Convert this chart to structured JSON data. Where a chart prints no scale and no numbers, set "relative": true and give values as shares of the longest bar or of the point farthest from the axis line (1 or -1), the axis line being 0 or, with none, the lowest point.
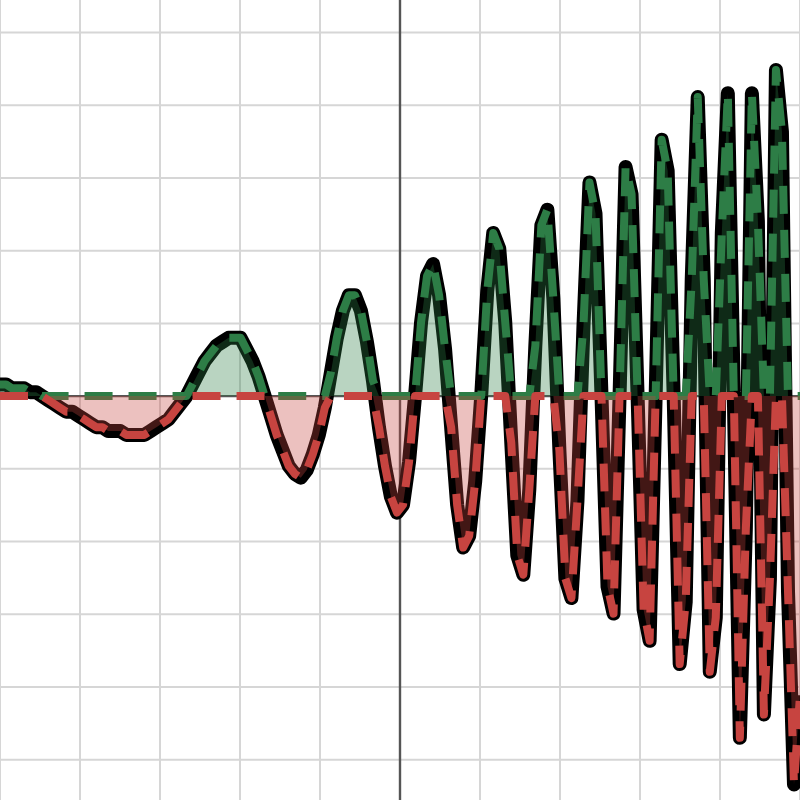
{
  "chart_data": {
    "type": "line",
    "relative": true,
    "grid": true,
    "legend": false,
    "marker": "none",
    "categories": [
      null,
      null,
      null,
      null,
      null,
      null,
      null,
      null,
      null,
      null,
      null,
      null,
      null,
      null,
      null,
      null,
      null,
      null,
      null,
      null,
      null,
      null,
      null,
      null,
      null,
      null,
      null,
      null,
      null,
      null,
      null,
      null,
      null,
      null,
      null,
      null,
      null,
      null,
      null,
      null,
      null,
      null,
      null,
      null,
      null,
      null,
      null,
      null,
      null,
      null,
      null,
      null,
      null,
      null,
      null,
      null,
      null,
      null,
      null,
      null,
      null,
      null,
      null,
      null,
      null,
      null,
      null,
      null,
      null,
      null,
      null,
      null,
      null,
      null,
      null,
      null,
      null,
      null,
      null,
      null,
      null,
      null,
      null,
      null,
      null,
      null,
      null,
      null,
      null,
      null,
      null,
      null,
      null,
      null,
      null,
      null,
      null,
      null,
      null,
      null,
      null,
      null,
      null,
      null,
      null,
      null,
      null,
      null,
      null,
      null,
      null,
      null,
      null,
      null,
      null,
      null,
      null,
      null,
      null,
      null,
      null,
      null,
      null,
      null,
      null,
      null,
      null,
      null,
      null,
      null,
      null,
      null,
      null,
      null
    ],
    "series": [
      {
        "line_style": "solid",
        "color": "#000000",
        "values": [
          0.03,
          0.03,
          0.02,
          0.02,
          0.02,
          0.01,
          0.01,
          0,
          -0.01,
          -0.02,
          -0.03,
          -0.04,
          -0.04,
          -0.05,
          -0.06,
          -0.07,
          -0.08,
          -0.08,
          -0.09,
          -0.09,
          -0.09,
          -0.1,
          -0.1,
          -0.1,
          -0.1,
          -0.09,
          -0.08,
          -0.07,
          -0.06,
          -0.04,
          -0.02,
          0,
          0.03,
          0.06,
          0.09,
          0.11,
          0.13,
          0.14,
          0.15,
          0.15,
          0.15,
          0.12,
          0.09,
          0.05,
          0,
          -0.05,
          -0.1,
          -0.14,
          -0.18,
          -0.2,
          -0.21,
          -0.19,
          -0.15,
          -0.1,
          -0.03,
          0.06,
          0.15,
          0.22,
          0.26,
          0.26,
          0.22,
          0.14,
          0.04,
          -0.08,
          -0.18,
          -0.26,
          -0.3,
          -0.28,
          -0.17,
          0,
          0.19,
          0.31,
          0.34,
          0.26,
          0.12,
          -0.08,
          -0.28,
          -0.39,
          -0.36,
          -0.22,
          0,
          0.27,
          0.42,
          0.38,
          0.19,
          -0.12,
          -0.41,
          -0.46,
          -0.24,
          0.13,
          0.44,
          0.48,
          0.25,
          -0.14,
          -0.47,
          -0.52,
          -0.27,
          0.18,
          0.55,
          0.47,
          0,
          -0.49,
          -0.56,
          0,
          0.59,
          0.52,
          0,
          -0.55,
          -0.63,
          0,
          0.66,
          0.58,
          0,
          -0.69,
          -0.53,
          0.3,
          0.77,
          0.3,
          -0.71,
          -0.57,
          0.42,
          0.78,
          0,
          -0.88,
          -0.34,
          0.78,
          0.45,
          -0.82,
          -0.47,
          0.84,
          0.68,
          -0.5,
          -1,
          -0.77
        ]
      },
      {
        "type": "area",
        "line_style": "dashed",
        "color": "#2d7d46",
        "values": [
          0.03,
          0.03,
          0.02,
          0.02,
          0.02,
          0.01,
          0.01,
          0,
          0,
          0,
          0,
          0,
          0,
          0,
          0,
          0,
          0,
          0,
          0,
          0,
          0,
          0,
          0,
          0,
          0,
          0,
          0,
          0,
          0,
          0,
          0,
          0,
          0.03,
          0.06,
          0.09,
          0.11,
          0.13,
          0.14,
          0.15,
          0.15,
          0.15,
          0.12,
          0.09,
          0.05,
          0,
          0,
          0,
          0,
          0,
          0,
          0,
          0,
          0,
          0,
          0,
          0.06,
          0.15,
          0.22,
          0.26,
          0.26,
          0.22,
          0.14,
          0.04,
          0,
          0,
          0,
          0,
          0,
          0,
          0,
          0.19,
          0.31,
          0.34,
          0.26,
          0.12,
          0,
          0,
          0,
          0,
          0,
          0,
          0.27,
          0.42,
          0.38,
          0.19,
          0,
          0,
          0,
          0,
          0.13,
          0.44,
          0.48,
          0.25,
          0,
          0,
          0,
          0,
          0.18,
          0.55,
          0.47,
          0,
          0,
          0,
          0,
          0.59,
          0.52,
          0,
          0,
          0,
          0,
          0.66,
          0.58,
          0,
          0,
          0,
          0.3,
          0.77,
          0.3,
          0,
          0,
          0.42,
          0.78,
          0,
          0,
          0,
          0.78,
          0.45,
          0,
          0,
          0.84,
          0.68,
          0,
          0,
          0
        ]
      },
      {
        "type": "area",
        "line_style": "dashed",
        "color": "#c74440",
        "values": [
          0,
          0,
          0,
          0,
          0,
          0,
          0,
          0,
          -0.01,
          -0.02,
          -0.03,
          -0.04,
          -0.04,
          -0.05,
          -0.06,
          -0.07,
          -0.08,
          -0.08,
          -0.09,
          -0.09,
          -0.09,
          -0.1,
          -0.1,
          -0.1,
          -0.1,
          -0.09,
          -0.08,
          -0.07,
          -0.06,
          -0.04,
          -0.02,
          0,
          0,
          0,
          0,
          0,
          0,
          0,
          0,
          0,
          0,
          0,
          0,
          0,
          0,
          -0.05,
          -0.1,
          -0.14,
          -0.18,
          -0.2,
          -0.21,
          -0.19,
          -0.15,
          -0.1,
          -0.03,
          0,
          0,
          0,
          0,
          0,
          0,
          0,
          0,
          -0.08,
          -0.18,
          -0.26,
          -0.3,
          -0.28,
          -0.17,
          0,
          0,
          0,
          0,
          0,
          0,
          -0.08,
          -0.28,
          -0.39,
          -0.36,
          -0.22,
          0,
          0,
          0,
          0,
          0,
          -0.12,
          -0.41,
          -0.46,
          -0.24,
          0,
          0,
          0,
          0,
          -0.14,
          -0.47,
          -0.52,
          -0.27,
          0,
          0,
          0,
          0,
          -0.49,
          -0.56,
          0,
          0,
          0,
          0,
          -0.55,
          -0.63,
          0,
          0,
          0,
          0,
          -0.69,
          -0.53,
          0,
          0,
          0,
          -0.71,
          -0.57,
          0,
          0,
          0,
          -0.88,
          -0.34,
          0,
          0,
          -0.82,
          -0.47,
          0,
          0,
          -0.5,
          -1,
          -0.77
        ]
      }
    ]
  }
}
